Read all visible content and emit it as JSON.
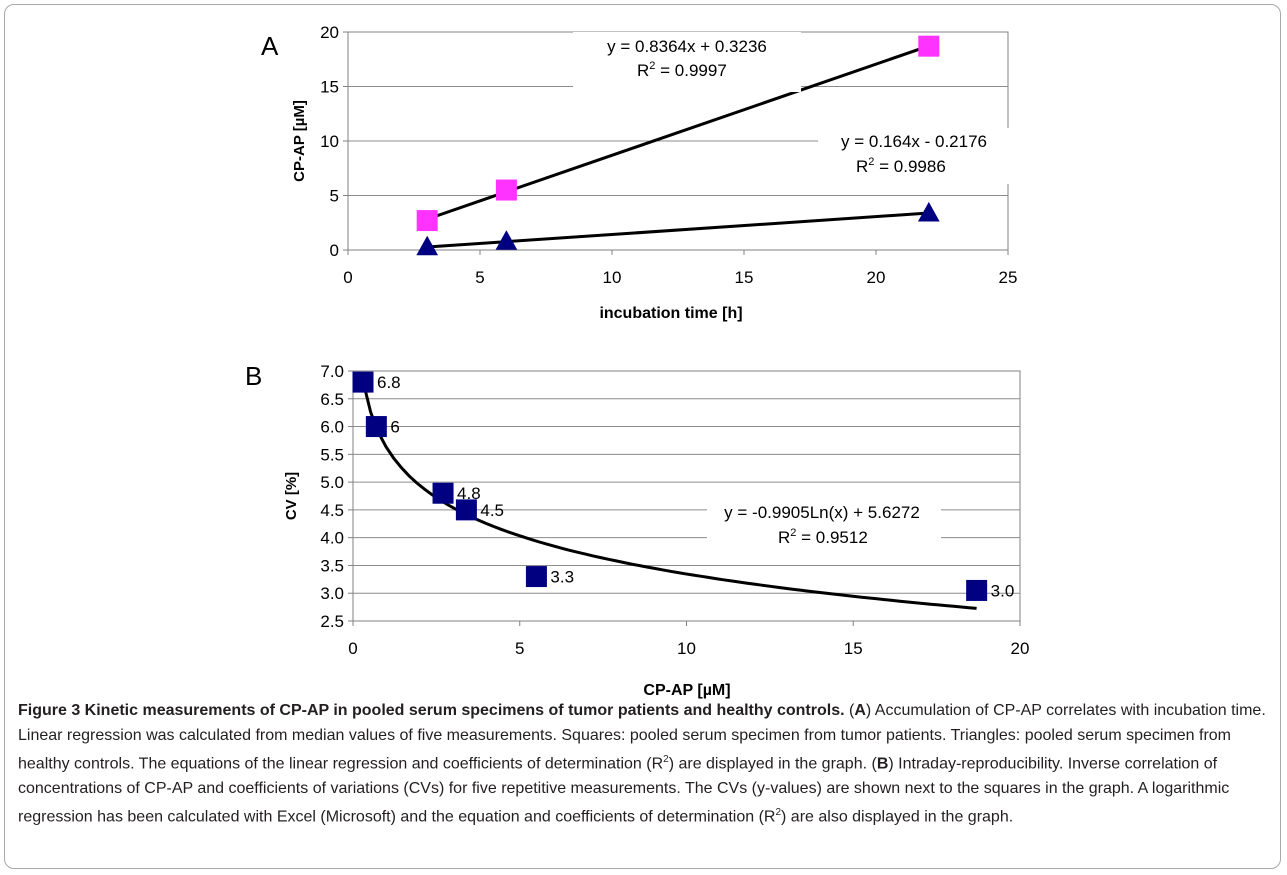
{
  "chart_data": [
    {
      "type": "scatter",
      "panel_label": "A",
      "xlabel": "incubation time [h]",
      "ylabel": "CP-AP [µM]",
      "xlim": [
        0,
        25
      ],
      "ylim": [
        0,
        20
      ],
      "x_ticks": [
        0,
        5,
        10,
        15,
        20,
        25
      ],
      "y_ticks": [
        0,
        5,
        10,
        15,
        20
      ],
      "grid": "horizontal",
      "series": [
        {
          "marker": "square",
          "color": "#ff33ff",
          "x": [
            3,
            6,
            22
          ],
          "y": [
            2.7,
            5.5,
            18.7
          ],
          "trendline": {
            "kind": "linear",
            "slope": 0.8364,
            "intercept": 0.3236,
            "x_range": [
              3,
              22
            ]
          },
          "equation": "y = 0.8364x + 0.3236",
          "r2_value": "= 0.9997"
        },
        {
          "marker": "triangle",
          "color": "#000080",
          "x": [
            3,
            6,
            22
          ],
          "y": [
            0.3,
            0.8,
            3.4
          ],
          "trendline": {
            "kind": "linear",
            "slope": 0.164,
            "intercept": -0.2176,
            "x_range": [
              3,
              22
            ]
          },
          "equation": "y = 0.164x - 0.2176",
          "r2_value": "= 0.9986"
        }
      ]
    },
    {
      "type": "scatter",
      "panel_label": "B",
      "xlabel": "CP-AP [µM]",
      "ylabel": "CV [%]",
      "xlim": [
        0,
        20
      ],
      "ylim": [
        2.5,
        7.0
      ],
      "x_ticks": [
        0,
        5,
        10,
        15,
        20
      ],
      "y_ticks": [
        2.5,
        3.0,
        3.5,
        4.0,
        4.5,
        5.0,
        5.5,
        6.0,
        6.5,
        7.0
      ],
      "y_tick_labels": [
        "2.5",
        "3.0",
        "3.5",
        "4.0",
        "4.5",
        "5.0",
        "5.5",
        "6.0",
        "6.5",
        "7.0"
      ],
      "grid": "horizontal",
      "series": [
        {
          "marker": "square",
          "color": "#000080",
          "x": [
            0.3,
            0.7,
            2.7,
            3.4,
            5.5,
            18.7
          ],
          "y": [
            6.8,
            6.0,
            4.8,
            4.5,
            3.3,
            3.05
          ],
          "point_labels": [
            "6.8",
            "6",
            "4.8",
            "4.5",
            "3.3",
            "3.0"
          ],
          "trendline": {
            "kind": "log",
            "a": -0.9905,
            "b": 5.6272,
            "x_range": [
              0.3,
              18.7
            ]
          },
          "equation": "y = -0.9905Ln(x) + 5.6272",
          "r2_value": "= 0.9512"
        }
      ]
    }
  ],
  "caption": {
    "title": "Figure 3 Kinetic measurements of CP-AP in pooled serum specimens of tumor patients and healthy controls.",
    "part_a": "Accumulation of CP-AP correlates with incubation time. Linear regression was calculated from median values of five measurements. Squares: pooled serum specimen from tumor patients. Triangles: pooled serum specimen from healthy controls. The equations of the linear regression and coefficients of determination (R",
    "part_a_end": ") are displayed in the graph.",
    "part_b": "Intraday-reproducibility. Inverse correlation of concentrations of CP-AP and coefficients of variations (CVs) for five repetitive measurements. The CVs (y-values) are shown next to the squares in the graph. A logarithmic regression has been calculated with Excel (Microsoft) and the equation and coefficients of determination (R",
    "part_b_end": ") are also displayed in the graph."
  }
}
